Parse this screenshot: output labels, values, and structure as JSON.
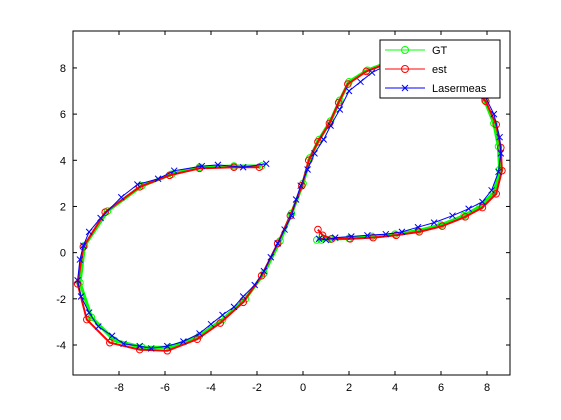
{
  "chart_data": {
    "type": "line",
    "title": "",
    "xlabel": "",
    "ylabel": "",
    "xlim": [
      -10,
      9
    ],
    "ylim": [
      -5.3,
      9.6
    ],
    "xticks": [
      -8,
      -6,
      -4,
      -2,
      0,
      2,
      4,
      6,
      8
    ],
    "yticks": [
      -4,
      -2,
      0,
      2,
      4,
      6,
      8
    ],
    "grid": false,
    "legend_position": "top-right",
    "series": [
      {
        "name": "GT",
        "color": "#00ff00",
        "marker": "circle",
        "x": [
          -1.8,
          -3,
          -4.5,
          -5.7,
          -7,
          -8.5,
          -9.5,
          -9.7,
          -9.2,
          -8.2,
          -7,
          -5.8,
          -4.5,
          -3.5,
          -2.5,
          -1.7,
          -1,
          -0.5,
          0,
          0.3,
          0.7,
          1.2,
          1.6,
          2,
          2.8,
          3.6,
          4.5,
          5.5,
          6.5,
          7.2,
          7.9,
          8.3,
          8.5,
          8.55,
          8.3,
          7.7,
          7,
          6,
          5,
          4,
          3,
          2,
          1.2,
          0.8,
          0.6
        ],
        "y": [
          3.75,
          3.75,
          3.7,
          3.4,
          2.9,
          1.8,
          0.3,
          -1.3,
          -2.8,
          -3.8,
          -4.1,
          -4.1,
          -3.6,
          -2.9,
          -2,
          -0.9,
          0.5,
          1.7,
          3,
          4.1,
          4.9,
          5.7,
          6.6,
          7.4,
          7.9,
          8.2,
          8.35,
          8.3,
          8,
          7.4,
          6.6,
          5.6,
          4.6,
          3.6,
          2.6,
          2,
          1.6,
          1.2,
          0.95,
          0.8,
          0.7,
          0.62,
          0.58,
          0.55,
          0.55
        ]
      },
      {
        "name": "est",
        "color": "#ff0000",
        "marker": "circle",
        "x": [
          -1.9,
          -3,
          -4.5,
          -5.8,
          -7.1,
          -8.6,
          -9.55,
          -9.8,
          -9.4,
          -8.4,
          -7.1,
          -5.9,
          -4.6,
          -3.6,
          -2.6,
          -1.8,
          -1.1,
          -0.55,
          -0.05,
          0.25,
          0.65,
          1.15,
          1.55,
          1.95,
          2.75,
          3.55,
          4.45,
          5.45,
          6.45,
          7.2,
          7.95,
          8.4,
          8.6,
          8.65,
          8.4,
          7.8,
          7.05,
          6.05,
          5.05,
          4.05,
          3.05,
          2.05,
          1.25,
          0.85,
          0.65
        ],
        "y": [
          3.7,
          3.7,
          3.65,
          3.35,
          2.85,
          1.75,
          0.25,
          -1.35,
          -2.9,
          -3.9,
          -4.2,
          -4.25,
          -3.75,
          -3.05,
          -2.15,
          -1,
          0.4,
          1.6,
          2.9,
          4,
          4.8,
          5.6,
          6.5,
          7.3,
          7.85,
          8.15,
          8.3,
          8.25,
          7.95,
          7.35,
          6.55,
          5.55,
          4.55,
          3.55,
          2.55,
          1.95,
          1.55,
          1.15,
          0.9,
          0.75,
          0.65,
          0.6,
          0.6,
          0.75,
          1
        ]
      },
      {
        "name": "Lasermeas",
        "color": "#0000ff",
        "marker": "x",
        "x": [
          -1.6,
          -2.6,
          -3.7,
          -4.4,
          -5.6,
          -6.3,
          -7.2,
          -7.9,
          -8.8,
          -9.3,
          -9.55,
          -9.7,
          -9.8,
          -9.65,
          -9.3,
          -8.9,
          -8.3,
          -7.8,
          -7.1,
          -6.6,
          -5.9,
          -5.2,
          -4.5,
          -4,
          -3.5,
          -3,
          -2.6,
          -2.1,
          -1.7,
          -1.4,
          -1.1,
          -0.8,
          -0.5,
          -0.3,
          -0.1,
          0.2,
          0.5,
          0.9,
          1.2,
          1.6,
          2,
          2.5,
          3,
          3.6,
          4.1,
          4.6,
          5.2,
          5.8,
          6.4,
          7,
          7.5,
          7.9,
          8.3,
          8.55,
          8.6,
          8.5,
          8.2,
          7.8,
          7.2,
          6.5,
          5.7,
          5,
          4.3,
          3.6,
          2.8,
          2.1,
          1.4,
          1,
          0.7
        ],
        "y": [
          3.85,
          3.7,
          3.8,
          3.75,
          3.55,
          3.2,
          2.95,
          2.4,
          1.5,
          0.9,
          0.3,
          -0.3,
          -1.2,
          -1.9,
          -2.6,
          -3.2,
          -3.6,
          -3.95,
          -4.05,
          -4.15,
          -4.05,
          -3.85,
          -3.5,
          -3.1,
          -2.7,
          -2.35,
          -1.9,
          -1.4,
          -0.8,
          -0.2,
          0.4,
          1,
          1.6,
          2.3,
          2.9,
          3.6,
          4.3,
          4.9,
          5.5,
          6.2,
          7,
          7.4,
          7.8,
          8.1,
          8.2,
          8.25,
          8.3,
          8.2,
          8.05,
          7.7,
          7.3,
          6.8,
          6,
          5,
          4.3,
          3.5,
          2.7,
          2.2,
          1.9,
          1.6,
          1.3,
          1.1,
          0.9,
          0.8,
          0.75,
          0.7,
          0.65,
          0.55,
          0.6
        ]
      }
    ]
  }
}
